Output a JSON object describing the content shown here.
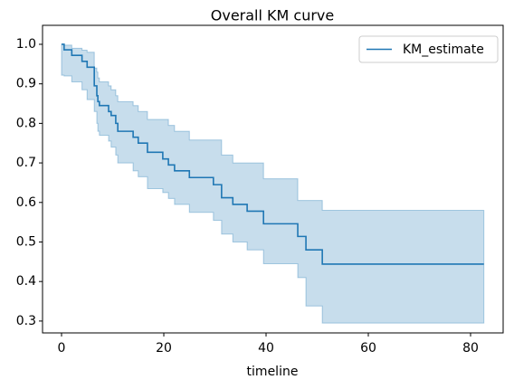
{
  "chart_data": {
    "type": "line",
    "drawstyle": "steps-post",
    "title": "Overall KM curve",
    "xlabel": "timeline",
    "x": [
      0,
      0.5,
      2,
      4,
      5,
      6.4,
      6.9,
      7.1,
      7.4,
      9.2,
      9.7,
      10.6,
      11,
      14,
      15,
      16.8,
      19.8,
      20.9,
      22.1,
      25,
      29.7,
      31.3,
      33.5,
      36.3,
      39.5,
      46.2,
      47.8,
      51,
      82.6
    ],
    "series": [
      {
        "name": "KM_estimate",
        "color": "#1f77b4",
        "band_color": "#1f77b4",
        "values": [
          1.0,
          0.986,
          0.972,
          0.957,
          0.942,
          0.895,
          0.87,
          0.855,
          0.845,
          0.83,
          0.82,
          0.8,
          0.78,
          0.765,
          0.75,
          0.727,
          0.71,
          0.695,
          0.68,
          0.663,
          0.645,
          0.612,
          0.595,
          0.578,
          0.546,
          0.514,
          0.48,
          0.444,
          0.444
        ],
        "lower": [
          0.922,
          0.92,
          0.905,
          0.885,
          0.86,
          0.83,
          0.8,
          0.78,
          0.77,
          0.755,
          0.74,
          0.72,
          0.7,
          0.68,
          0.665,
          0.635,
          0.625,
          0.61,
          0.595,
          0.575,
          0.555,
          0.52,
          0.5,
          0.48,
          0.445,
          0.41,
          0.338,
          0.295,
          0.295
        ],
        "upper": [
          1.0,
          0.998,
          0.99,
          0.985,
          0.98,
          0.94,
          0.93,
          0.915,
          0.905,
          0.895,
          0.885,
          0.87,
          0.855,
          0.845,
          0.83,
          0.81,
          0.81,
          0.795,
          0.78,
          0.758,
          0.758,
          0.72,
          0.7,
          0.7,
          0.66,
          0.605,
          0.605,
          0.58,
          0.58
        ]
      }
    ],
    "xlim": [
      -3.72,
      86.37
    ],
    "xticks": [
      0,
      20,
      40,
      60,
      80
    ],
    "ylim": [
      0.27,
      1.048
    ],
    "yticks": [
      0.3,
      0.4,
      0.5,
      0.6,
      0.7,
      0.8,
      0.9,
      {
        "value": 1,
        "label": "1.0"
      }
    ],
    "legend": "upper right"
  }
}
